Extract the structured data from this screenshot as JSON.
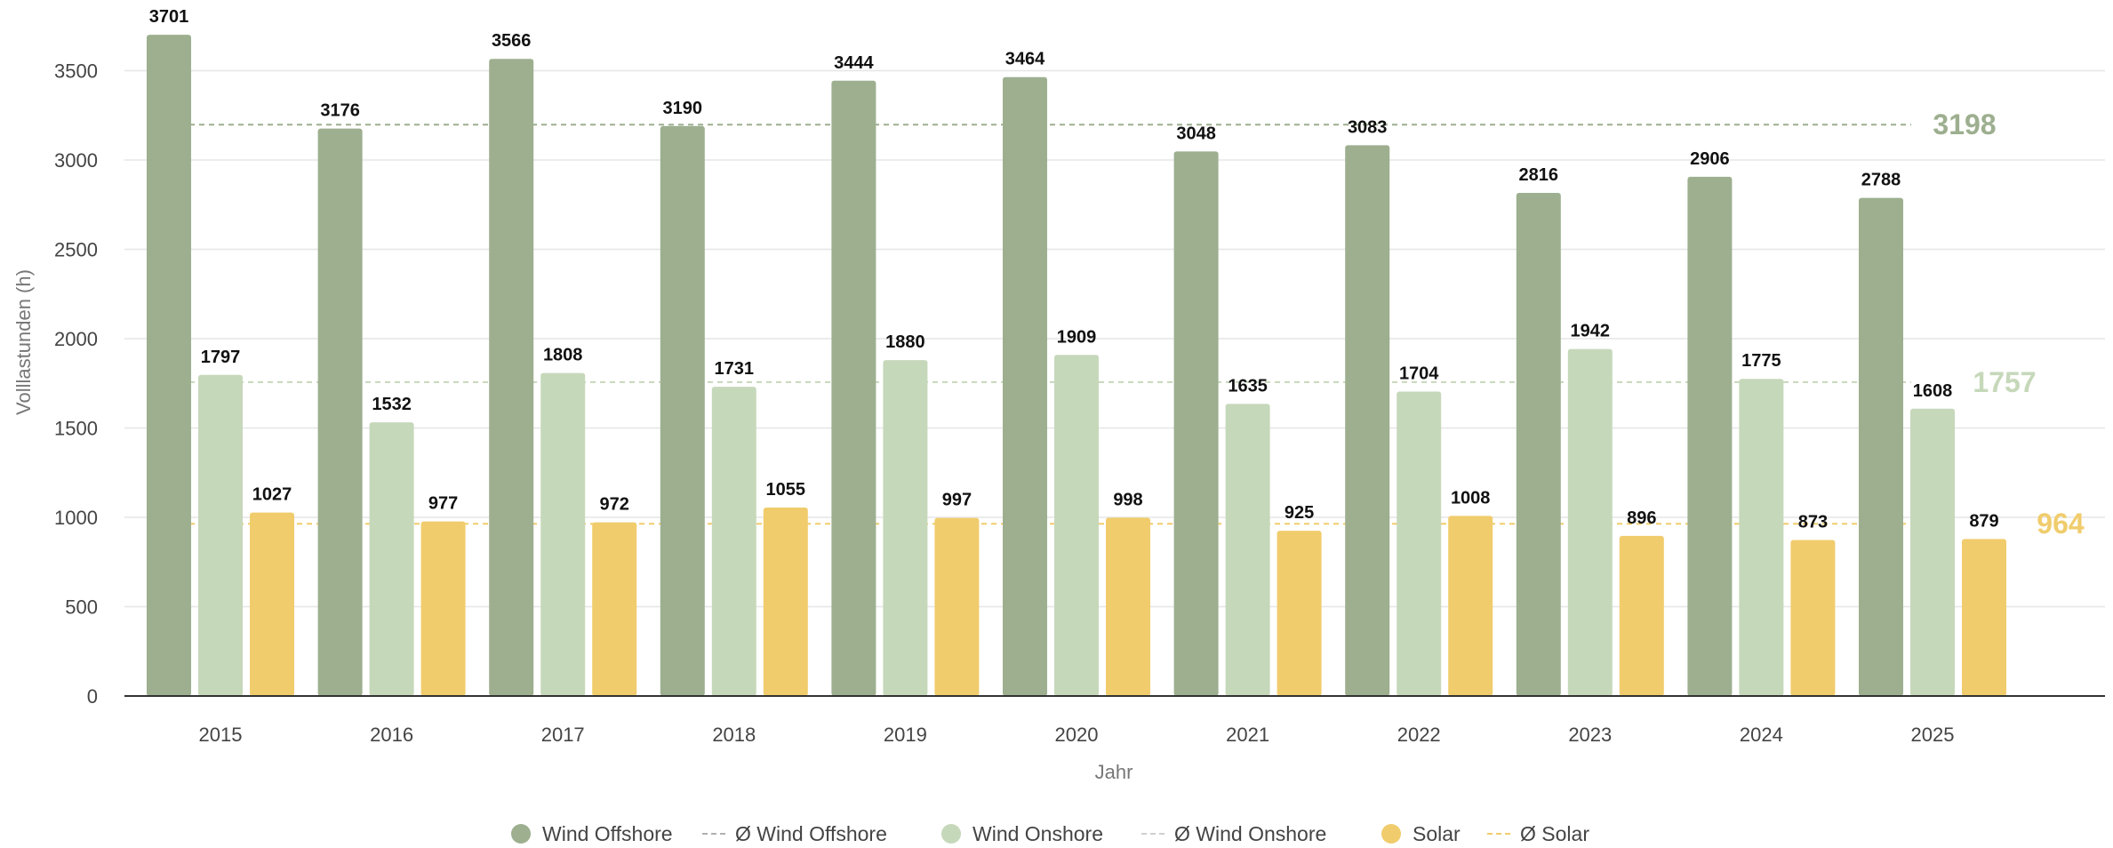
{
  "chart_data": {
    "type": "bar",
    "title": "",
    "xlabel": "Jahr",
    "ylabel": "Volllastunden (h)",
    "ylim": [
      0,
      3700
    ],
    "yticks": [
      0,
      500,
      1000,
      1500,
      2000,
      2500,
      3000,
      3500
    ],
    "grid": true,
    "legend_position": "bottom",
    "categories": [
      "2015",
      "2016",
      "2017",
      "2018",
      "2019",
      "2020",
      "2021",
      "2022",
      "2023",
      "2024",
      "2025"
    ],
    "series": [
      {
        "name": "Wind Offshore",
        "color": "#9daf8f",
        "values": [
          3701,
          3176,
          3566,
          3190,
          3444,
          3464,
          3048,
          3083,
          2816,
          2906,
          2788
        ]
      },
      {
        "name": "Wind Onshore",
        "color": "#c6d8ba",
        "values": [
          1797,
          1532,
          1808,
          1731,
          1880,
          1909,
          1635,
          1704,
          1942,
          1775,
          1608
        ]
      },
      {
        "name": "Solar",
        "color": "#f0cc6c",
        "values": [
          1027,
          977,
          972,
          1055,
          997,
          998,
          925,
          1008,
          896,
          873,
          879
        ]
      }
    ],
    "averages": [
      {
        "name": "Ø Wind Offshore",
        "value": 3198,
        "label": "3198",
        "color": "#9daf8f",
        "legend_color": "#b0b0b0"
      },
      {
        "name": "Ø Wind Onshore",
        "value": 1757,
        "label": "1757",
        "color": "#c6d8ba",
        "legend_color": "#d0d0d0"
      },
      {
        "name": "Ø Solar",
        "value": 964,
        "label": "964",
        "color": "#f0cc6c",
        "legend_color": "#f0cc6c"
      }
    ]
  }
}
